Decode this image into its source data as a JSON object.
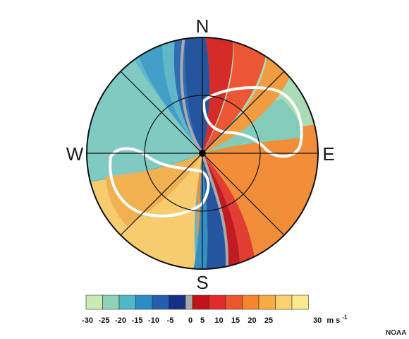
{
  "compass": {
    "north": "N",
    "south": "S",
    "east": "E",
    "west": "W"
  },
  "scale": {
    "ticks": [
      "-30",
      "-25",
      "-20",
      "-15",
      "-10",
      "-5",
      "0",
      "5",
      "10",
      "15",
      "20",
      "25"
    ],
    "last_tick": "30",
    "unit": "m s",
    "unit_exponent": "-1",
    "colors": [
      "#c8eab3",
      "#8fd2b9",
      "#4eb8c9",
      "#2b8dc4",
      "#235fae",
      "#152f86",
      "#a9a9a9",
      "#c1121a",
      "#e52a2a",
      "#f0562d",
      "#f5862e",
      "#f7ac40",
      "#fbd170",
      "#fce98b"
    ]
  },
  "credit": "NOAA"
}
